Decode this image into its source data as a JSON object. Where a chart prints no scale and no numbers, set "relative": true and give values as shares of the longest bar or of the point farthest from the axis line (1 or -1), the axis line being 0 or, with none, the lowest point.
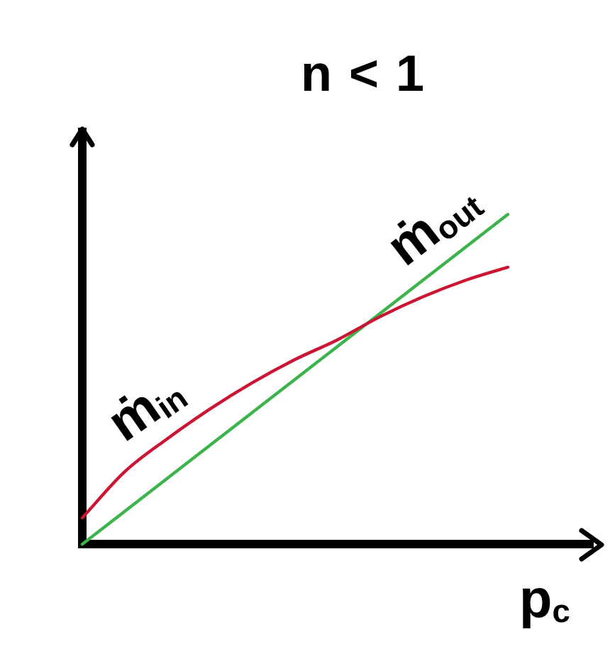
{
  "chart_data": {
    "type": "line",
    "title": "n < 1",
    "xlabel": "p$_{c}$",
    "relative": true,
    "categories": [
      null,
      null,
      null,
      null,
      null,
      null,
      null,
      null,
      null,
      null,
      null,
      null,
      null
    ],
    "series": [
      {
        "name": "ṁ$_{in}$",
        "color": "#cc1433",
        "values": [
          0.08,
          0.22,
          0.32,
          0.41,
          0.49,
          0.56,
          0.62,
          0.69,
          0.75,
          0.8,
          0.84,
          null,
          null
        ]
      },
      {
        "name": "ṁ$_{out}$",
        "color": "#3cb44b",
        "values": [
          0,
          0.1,
          0.2,
          0.3,
          0.4,
          0.5,
          0.6,
          0.7,
          0.8,
          0.9,
          1,
          null,
          null
        ]
      }
    ],
    "grid": false,
    "legend": false,
    "marker": "none",
    "line_style": "solid"
  }
}
